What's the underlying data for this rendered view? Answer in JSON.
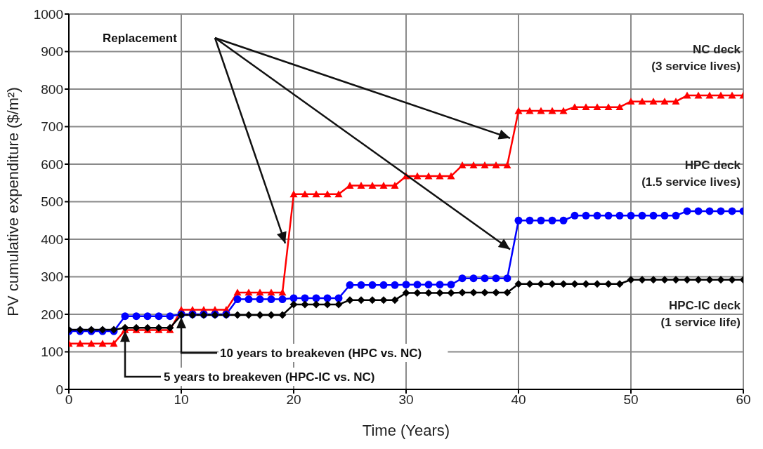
{
  "chart_data": {
    "type": "line",
    "xlabel": "Time (Years)",
    "ylabel": "PV cumulative expenditure ($/m²)",
    "x": [
      0,
      1,
      2,
      3,
      4,
      5,
      6,
      7,
      8,
      9,
      10,
      11,
      12,
      13,
      14,
      15,
      16,
      17,
      18,
      19,
      20,
      21,
      22,
      23,
      24,
      25,
      26,
      27,
      28,
      29,
      30,
      31,
      32,
      33,
      34,
      35,
      36,
      37,
      38,
      39,
      40,
      41,
      42,
      43,
      44,
      45,
      46,
      47,
      48,
      49,
      50,
      51,
      52,
      53,
      54,
      55,
      56,
      57,
      58,
      59,
      60
    ],
    "series": [
      {
        "name": "NC deck\n(3 service lives)",
        "color": "#ff0000",
        "marker": "triangle",
        "values": [
          122,
          122,
          122,
          122,
          122,
          158,
          158,
          158,
          158,
          158,
          212,
          212,
          212,
          212,
          212,
          258,
          258,
          258,
          258,
          258,
          520,
          520,
          520,
          520,
          520,
          543,
          543,
          543,
          543,
          543,
          568,
          568,
          568,
          568,
          568,
          597,
          597,
          597,
          597,
          597,
          742,
          742,
          742,
          742,
          742,
          752,
          752,
          752,
          752,
          752,
          767,
          767,
          767,
          767,
          767,
          783,
          783,
          783,
          783,
          783,
          783
        ]
      },
      {
        "name": "HPC deck\n(1.5 service lives)",
        "color": "#0000ff",
        "marker": "circle",
        "values": [
          155,
          155,
          155,
          155,
          155,
          195,
          195,
          195,
          195,
          195,
          200,
          200,
          200,
          200,
          200,
          240,
          240,
          240,
          240,
          240,
          243,
          243,
          243,
          243,
          243,
          278,
          278,
          278,
          278,
          278,
          279,
          279,
          279,
          279,
          279,
          296,
          296,
          296,
          296,
          296,
          450,
          450,
          450,
          450,
          450,
          463,
          463,
          463,
          463,
          463,
          463,
          463,
          463,
          463,
          463,
          475,
          475,
          475,
          475,
          475,
          475
        ]
      },
      {
        "name": "HPC-IC deck\n(1 service life)",
        "color": "#000000",
        "marker": "diamond",
        "values": [
          159,
          159,
          159,
          159,
          159,
          164,
          164,
          164,
          164,
          164,
          198,
          198,
          198,
          198,
          198,
          198,
          198,
          198,
          198,
          198,
          226,
          226,
          226,
          226,
          226,
          238,
          238,
          238,
          238,
          238,
          257,
          257,
          257,
          257,
          257,
          258,
          258,
          258,
          258,
          258,
          281,
          281,
          281,
          281,
          281,
          281,
          281,
          281,
          281,
          281,
          292,
          292,
          292,
          292,
          292,
          292,
          292,
          292,
          292,
          292,
          292
        ]
      }
    ],
    "xlim": [
      0,
      60
    ],
    "xticks": [
      0,
      10,
      20,
      30,
      40,
      50,
      60
    ],
    "ylim": [
      0,
      1000
    ],
    "yticks": [
      0,
      100,
      200,
      300,
      400,
      500,
      600,
      700,
      800,
      900,
      1000
    ],
    "grid": true,
    "annotations": [
      "Replacement",
      "10 years to breakeven (HPC vs. NC)",
      "5 years to breakeven (HPC-IC vs. NC)"
    ]
  }
}
